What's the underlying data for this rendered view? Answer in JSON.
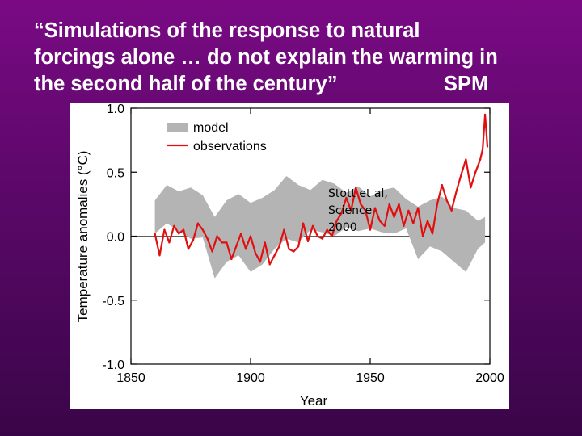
{
  "slide": {
    "title_lines": [
      "“Simulations of the response to natural",
      "forcings alone … do not explain the warming in",
      "the second half of the century”"
    ],
    "title_tag": "SPM",
    "credit": "Stott et al,\nScience\n2000",
    "background_colors": [
      "#7a0a84",
      "#3a0548"
    ]
  },
  "chart_data": {
    "type": "line",
    "title": "",
    "xlabel": "Year",
    "ylabel": "Temperature anomalies (°C)",
    "xlim": [
      1850,
      2000
    ],
    "ylim": [
      -1.0,
      1.0
    ],
    "x_ticks": [
      "1850",
      "1900",
      "1950",
      "2000"
    ],
    "y_ticks": [
      "-1.0",
      "-0.5",
      "0.0",
      "0.5",
      "1.0"
    ],
    "grid": false,
    "legend_position": "top-left",
    "series": [
      {
        "name": "model",
        "kind": "band",
        "color": "#b4b4b4",
        "x": [
          1860,
          1865,
          1870,
          1875,
          1880,
          1885,
          1890,
          1895,
          1900,
          1905,
          1910,
          1915,
          1920,
          1925,
          1930,
          1935,
          1940,
          1945,
          1950,
          1955,
          1960,
          1965,
          1970,
          1975,
          1980,
          1985,
          1990,
          1995,
          1998
        ],
        "upper": [
          0.28,
          0.4,
          0.35,
          0.38,
          0.32,
          0.15,
          0.28,
          0.33,
          0.26,
          0.3,
          0.36,
          0.47,
          0.4,
          0.36,
          0.44,
          0.41,
          0.34,
          0.39,
          0.31,
          0.36,
          0.38,
          0.29,
          0.23,
          0.28,
          0.31,
          0.22,
          0.2,
          0.12,
          0.15
        ],
        "lower": [
          0.02,
          0.1,
          0.04,
          -0.02,
          -0.01,
          -0.33,
          -0.2,
          -0.15,
          -0.28,
          -0.22,
          -0.1,
          -0.02,
          -0.05,
          0.05,
          0.03,
          0.0,
          0.07,
          0.04,
          0.06,
          0.03,
          0.02,
          0.06,
          -0.18,
          -0.08,
          -0.12,
          -0.2,
          -0.28,
          -0.1,
          -0.05
        ]
      },
      {
        "name": "observations",
        "kind": "line",
        "color": "#e01010",
        "x": [
          1860,
          1862,
          1864,
          1866,
          1868,
          1870,
          1872,
          1874,
          1876,
          1878,
          1880,
          1882,
          1884,
          1886,
          1888,
          1890,
          1892,
          1894,
          1896,
          1898,
          1900,
          1902,
          1904,
          1906,
          1908,
          1910,
          1912,
          1914,
          1916,
          1918,
          1920,
          1922,
          1924,
          1926,
          1928,
          1930,
          1932,
          1934,
          1936,
          1938,
          1940,
          1942,
          1944,
          1946,
          1948,
          1950,
          1952,
          1954,
          1956,
          1958,
          1960,
          1962,
          1964,
          1966,
          1968,
          1970,
          1972,
          1974,
          1976,
          1978,
          1980,
          1982,
          1984,
          1986,
          1988,
          1990,
          1992,
          1994,
          1996,
          1997,
          1998,
          1999
        ],
        "y": [
          0.02,
          -0.15,
          0.05,
          -0.05,
          0.08,
          0.02,
          0.05,
          -0.1,
          -0.03,
          0.1,
          0.05,
          -0.02,
          -0.12,
          0.0,
          -0.05,
          -0.05,
          -0.18,
          -0.08,
          0.02,
          -0.1,
          0.0,
          -0.13,
          -0.2,
          -0.05,
          -0.22,
          -0.15,
          -0.08,
          0.05,
          -0.1,
          -0.12,
          -0.08,
          0.1,
          -0.04,
          0.08,
          0.0,
          -0.02,
          0.05,
          0.0,
          0.12,
          0.18,
          0.3,
          0.2,
          0.38,
          0.25,
          0.2,
          0.05,
          0.22,
          0.12,
          0.08,
          0.25,
          0.15,
          0.25,
          0.08,
          0.2,
          0.1,
          0.22,
          0.0,
          0.12,
          0.02,
          0.25,
          0.4,
          0.28,
          0.2,
          0.35,
          0.48,
          0.6,
          0.38,
          0.5,
          0.6,
          0.68,
          0.95,
          0.7
        ]
      }
    ]
  }
}
